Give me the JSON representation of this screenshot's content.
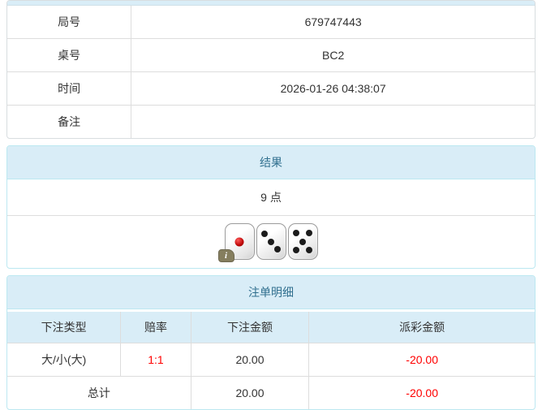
{
  "colors": {
    "header_bg": "#d9edf7",
    "header_text": "#31708f",
    "panel_border": "#bce8f1",
    "cell_border": "#dddddd",
    "text": "#333333",
    "negative": "#ff0000"
  },
  "info_table": {
    "rows": [
      {
        "label": "局号",
        "value": "679747443"
      },
      {
        "label": "桌号",
        "value": "BC2"
      },
      {
        "label": "时间",
        "value": "2026-01-26 04:38:07"
      },
      {
        "label": "备注",
        "value": ""
      }
    ]
  },
  "result_panel": {
    "title": "结果",
    "points": "9 点",
    "dice": [
      1,
      3,
      5
    ],
    "info_badge": "i"
  },
  "bets_panel": {
    "title": "注单明细",
    "columns": [
      "下注类型",
      "赔率",
      "下注金额",
      "派彩金额"
    ],
    "rows": [
      {
        "type": "大/小(大)",
        "odds": "1:1",
        "bet": "20.00",
        "payout": "-20.00"
      }
    ],
    "total": {
      "label": "总计",
      "bet": "20.00",
      "payout": "-20.00"
    }
  }
}
